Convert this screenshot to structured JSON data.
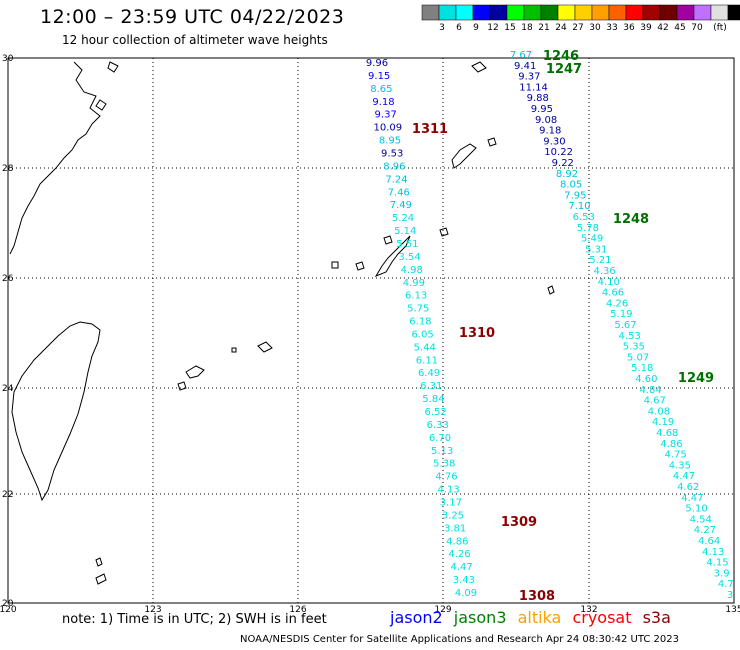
{
  "title": "12:00 – 23:59 UTC 04/22/2023",
  "subtitle": "12 hour collection of altimeter wave heights",
  "legend": {
    "colors": [
      "#808080",
      "#00e0e0",
      "#00ffff",
      "#0000ff",
      "#0000a0",
      "#00ff00",
      "#00c000",
      "#008000",
      "#ffff00",
      "#ffd000",
      "#ffa000",
      "#ff6000",
      "#ff0000",
      "#a00000",
      "#700000",
      "#a000a0",
      "#c070ff",
      "#e0e0e0",
      "#000000"
    ],
    "labels": [
      "3",
      "6",
      "9",
      "12",
      "15",
      "18",
      "21",
      "24",
      "27",
      "30",
      "33",
      "36",
      "39",
      "42",
      "45",
      "70",
      "(ft)"
    ]
  },
  "axes": {
    "lon_labels": [
      "120",
      "123",
      "126",
      "129",
      "132",
      "135"
    ],
    "lat_labels": [
      "30",
      "28",
      "26",
      "24",
      "22",
      "20"
    ]
  },
  "tracks": [
    {
      "pass_labels": [
        {
          "text": "1311",
          "color": "#8b0000"
        },
        {
          "text": "1310",
          "color": "#8b0000"
        },
        {
          "text": "1309",
          "color": "#8b0000"
        },
        {
          "text": "1308",
          "color": "#8b0000"
        }
      ],
      "values": [
        "9.96",
        "9.15",
        "8.65",
        "9.18",
        "9.37",
        "10.09",
        "8.95",
        "9.53",
        "8.96",
        "7.24",
        "7.46",
        "7.49",
        "5.24",
        "5.14",
        "5.51",
        "3.54",
        "4.98",
        "4.99",
        "6.13",
        "5.75",
        "6.18",
        "6.05",
        "5.44",
        "6.11",
        "6.49",
        "6.31",
        "5.84",
        "6.52",
        "6.33",
        "6.70",
        "5.13",
        "5.38",
        "4.76",
        "4.13",
        "3.17",
        "3.25",
        "3.81",
        "4.86",
        "4.26",
        "4.47",
        "3.43",
        "4.09"
      ],
      "colors": [
        "#0000a0",
        "#0000ff",
        "#00c0e0",
        "#0000ff",
        "#0000ff",
        "#0000a0",
        "#00c0e0",
        "#0000a0",
        "#00c0e0",
        "#00c0e0",
        "#00c0e0",
        "#00c0e0",
        "#00e0e0",
        "#00e0e0",
        "#00e0e0",
        "#00e0e0",
        "#00e0e0",
        "#00e0e0",
        "#00e0e0",
        "#00e0e0",
        "#00e0e0",
        "#00e0e0",
        "#00e0e0",
        "#00e0e0",
        "#00e0e0",
        "#00e0e0",
        "#00e0e0",
        "#00e0e0",
        "#00e0e0",
        "#00e0e0",
        "#00e0e0",
        "#00e0e0",
        "#00e0e0",
        "#00e0e0",
        "#00e0e0",
        "#00e0e0",
        "#00e0e0",
        "#00e0e0",
        "#00e0e0",
        "#00e0e0",
        "#00e0e0",
        "#00e0e0"
      ]
    },
    {
      "pass_labels": [
        {
          "text": "1246",
          "color": "#007000"
        },
        {
          "text": "1247",
          "color": "#007000"
        },
        {
          "text": "1248",
          "color": "#007000"
        },
        {
          "text": "1249",
          "color": "#007000"
        }
      ],
      "values": [
        "7.67",
        "9.41",
        "9.37",
        "11.14",
        "9.88",
        "9.95",
        "9.08",
        "9.18",
        "9.30",
        "10.22",
        "9.22",
        "8.92",
        "8.05",
        "7.95",
        "7.10",
        "6.53",
        "5.78",
        "5.49",
        "5.31",
        "5.21",
        "4.36",
        "4.10",
        "4.66",
        "4.26",
        "5.19",
        "5.67",
        "4.53",
        "5.35",
        "5.07",
        "5.18",
        "4.60",
        "4.84",
        "4.67",
        "4.08",
        "4.19",
        "4.68",
        "4.86",
        "4.75",
        "4.35",
        "4.47",
        "4.62",
        "4.47",
        "5.10",
        "4.54",
        "4.27",
        "4.64",
        "4.13",
        "4.15",
        "3.9",
        "4.7",
        "3"
      ],
      "colors": [
        "#00c0e0",
        "#0000a0",
        "#0000a0",
        "#0000a0",
        "#0000a0",
        "#0000a0",
        "#0000a0",
        "#0000a0",
        "#0000a0",
        "#0000a0",
        "#0000a0",
        "#00c0e0",
        "#00c0e0",
        "#00c0e0",
        "#00c0e0",
        "#00e0e0",
        "#00e0e0",
        "#00e0e0",
        "#00e0e0",
        "#00e0e0",
        "#00e0e0",
        "#00e0e0",
        "#00e0e0",
        "#00e0e0",
        "#00e0e0",
        "#00e0e0",
        "#00e0e0",
        "#00e0e0",
        "#00e0e0",
        "#00e0e0",
        "#00e0e0",
        "#00e0e0",
        "#00e0e0",
        "#00e0e0",
        "#00e0e0",
        "#00e0e0",
        "#00e0e0",
        "#00e0e0",
        "#00e0e0",
        "#00e0e0",
        "#00e0e0",
        "#00e0e0",
        "#00e0e0",
        "#00e0e0",
        "#00e0e0",
        "#00e0e0",
        "#00e0e0",
        "#00e0e0",
        "#00e0e0",
        "#00e0e0",
        "#00e0e0"
      ]
    }
  ],
  "note": "note:  1) Time is in UTC;  2) SWH is in feet",
  "satellites": [
    {
      "name": "jason2",
      "color": "#0000ff"
    },
    {
      "name": "jason3",
      "color": "#008000"
    },
    {
      "name": "altika",
      "color": "#ffa000"
    },
    {
      "name": "cryosat",
      "color": "#ff0000"
    },
    {
      "name": "s3a",
      "color": "#8b0000"
    }
  ],
  "footer": "NOAA/NESDIS Center for Satellite Applications and Research    Apr 24 08:30:42 UTC 2023"
}
